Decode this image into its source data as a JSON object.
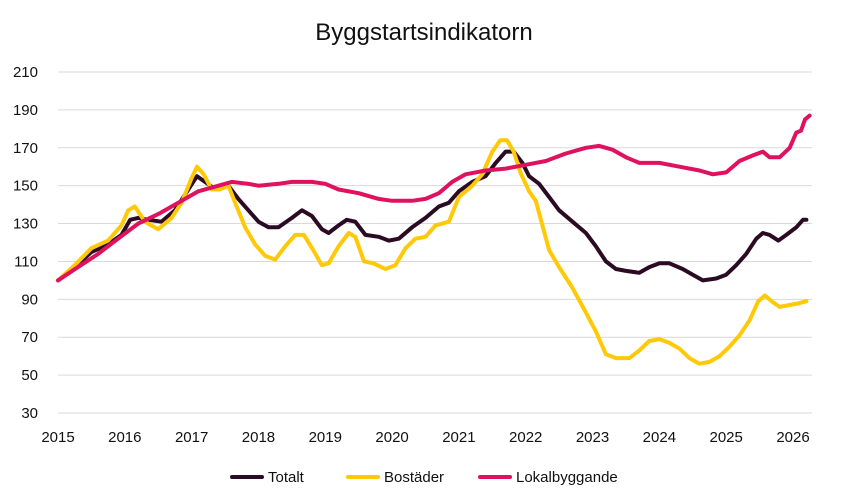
{
  "chart_data": {
    "type": "line",
    "title": "Byggstartsindikatorn",
    "xlabel": "",
    "ylabel": "",
    "xlim": [
      2015.0,
      2026.2
    ],
    "ylim": [
      30,
      210
    ],
    "y_ticks": [
      30,
      50,
      70,
      90,
      110,
      130,
      150,
      170,
      190,
      210
    ],
    "x_ticks": [
      2015,
      2016,
      2017,
      2018,
      2019,
      2020,
      2021,
      2022,
      2023,
      2024,
      2025,
      2026
    ],
    "x_tick_labels": [
      "2015",
      "2016",
      "2017",
      "2018",
      "2019",
      "2020",
      "2021",
      "2022",
      "2023",
      "2024",
      "2025",
      "2026"
    ],
    "grid": "horizontal",
    "legend": "bottom",
    "series": [
      {
        "name": "Totalt",
        "color": "#2b0b24",
        "points": [
          [
            2015.0,
            100
          ],
          [
            2015.25,
            107
          ],
          [
            2015.5,
            115
          ],
          [
            2015.75,
            119
          ],
          [
            2015.95,
            124
          ],
          [
            2016.08,
            132
          ],
          [
            2016.2,
            133
          ],
          [
            2016.35,
            132
          ],
          [
            2016.55,
            131
          ],
          [
            2016.75,
            137
          ],
          [
            2016.95,
            148
          ],
          [
            2017.08,
            155
          ],
          [
            2017.2,
            152
          ],
          [
            2017.32,
            149
          ],
          [
            2017.45,
            150
          ],
          [
            2017.55,
            150
          ],
          [
            2017.7,
            143
          ],
          [
            2017.85,
            137
          ],
          [
            2018.0,
            131
          ],
          [
            2018.15,
            128
          ],
          [
            2018.3,
            128
          ],
          [
            2018.5,
            133
          ],
          [
            2018.65,
            137
          ],
          [
            2018.8,
            134
          ],
          [
            2018.95,
            127
          ],
          [
            2019.05,
            125
          ],
          [
            2019.2,
            129
          ],
          [
            2019.32,
            132
          ],
          [
            2019.45,
            131
          ],
          [
            2019.6,
            124
          ],
          [
            2019.8,
            123
          ],
          [
            2019.95,
            121
          ],
          [
            2020.1,
            122
          ],
          [
            2020.3,
            128
          ],
          [
            2020.5,
            133
          ],
          [
            2020.7,
            139
          ],
          [
            2020.85,
            141
          ],
          [
            2021.0,
            147
          ],
          [
            2021.2,
            152
          ],
          [
            2021.4,
            155
          ],
          [
            2021.55,
            162
          ],
          [
            2021.7,
            168
          ],
          [
            2021.82,
            168
          ],
          [
            2021.95,
            162
          ],
          [
            2022.05,
            155
          ],
          [
            2022.2,
            151
          ],
          [
            2022.35,
            144
          ],
          [
            2022.5,
            137
          ],
          [
            2022.7,
            131
          ],
          [
            2022.9,
            125
          ],
          [
            2023.05,
            118
          ],
          [
            2023.2,
            110
          ],
          [
            2023.35,
            106
          ],
          [
            2023.5,
            105
          ],
          [
            2023.7,
            104
          ],
          [
            2023.85,
            107
          ],
          [
            2024.0,
            109
          ],
          [
            2024.15,
            109
          ],
          [
            2024.35,
            106
          ],
          [
            2024.5,
            103
          ],
          [
            2024.65,
            100
          ],
          [
            2024.85,
            101
          ],
          [
            2025.0,
            103
          ],
          [
            2025.15,
            108
          ],
          [
            2025.3,
            114
          ],
          [
            2025.45,
            122
          ],
          [
            2025.55,
            125
          ],
          [
            2025.65,
            124
          ],
          [
            2025.78,
            121
          ],
          [
            2025.9,
            124
          ],
          [
            2026.05,
            128
          ],
          [
            2026.15,
            132
          ],
          [
            2026.2,
            132
          ]
        ]
      },
      {
        "name": "Bostäder",
        "color": "#ffc907",
        "points": [
          [
            2015.0,
            100
          ],
          [
            2015.25,
            108
          ],
          [
            2015.5,
            117
          ],
          [
            2015.75,
            121
          ],
          [
            2015.95,
            129
          ],
          [
            2016.05,
            137
          ],
          [
            2016.15,
            139
          ],
          [
            2016.3,
            131
          ],
          [
            2016.5,
            127
          ],
          [
            2016.7,
            133
          ],
          [
            2016.85,
            141
          ],
          [
            2017.0,
            154
          ],
          [
            2017.08,
            160
          ],
          [
            2017.18,
            156
          ],
          [
            2017.3,
            148
          ],
          [
            2017.42,
            148
          ],
          [
            2017.55,
            150
          ],
          [
            2017.65,
            141
          ],
          [
            2017.8,
            128
          ],
          [
            2017.95,
            119
          ],
          [
            2018.1,
            113
          ],
          [
            2018.25,
            111
          ],
          [
            2018.4,
            118
          ],
          [
            2018.55,
            124
          ],
          [
            2018.68,
            124
          ],
          [
            2018.82,
            116
          ],
          [
            2018.95,
            108
          ],
          [
            2019.05,
            109
          ],
          [
            2019.2,
            118
          ],
          [
            2019.35,
            125
          ],
          [
            2019.45,
            123
          ],
          [
            2019.58,
            110
          ],
          [
            2019.72,
            109
          ],
          [
            2019.9,
            106
          ],
          [
            2020.05,
            108
          ],
          [
            2020.2,
            117
          ],
          [
            2020.35,
            122
          ],
          [
            2020.5,
            123
          ],
          [
            2020.65,
            129
          ],
          [
            2020.85,
            131
          ],
          [
            2021.0,
            144
          ],
          [
            2021.2,
            150
          ],
          [
            2021.35,
            156
          ],
          [
            2021.5,
            168
          ],
          [
            2021.62,
            174
          ],
          [
            2021.72,
            174
          ],
          [
            2021.82,
            168
          ],
          [
            2021.92,
            157
          ],
          [
            2022.05,
            147
          ],
          [
            2022.15,
            142
          ],
          [
            2022.25,
            129
          ],
          [
            2022.35,
            116
          ],
          [
            2022.5,
            107
          ],
          [
            2022.7,
            96
          ],
          [
            2022.9,
            83
          ],
          [
            2023.05,
            73
          ],
          [
            2023.2,
            61
          ],
          [
            2023.35,
            59
          ],
          [
            2023.55,
            59
          ],
          [
            2023.7,
            63
          ],
          [
            2023.85,
            68
          ],
          [
            2024.0,
            69
          ],
          [
            2024.15,
            67
          ],
          [
            2024.3,
            64
          ],
          [
            2024.45,
            59
          ],
          [
            2024.6,
            56
          ],
          [
            2024.75,
            57
          ],
          [
            2024.9,
            60
          ],
          [
            2025.05,
            65
          ],
          [
            2025.2,
            71
          ],
          [
            2025.35,
            79
          ],
          [
            2025.48,
            89
          ],
          [
            2025.58,
            92
          ],
          [
            2025.68,
            89
          ],
          [
            2025.8,
            86
          ],
          [
            2025.95,
            87
          ],
          [
            2026.1,
            88
          ],
          [
            2026.2,
            89
          ]
        ]
      },
      {
        "name": "Lokalbyggande",
        "color": "#e0115f",
        "points": [
          [
            2015.0,
            100
          ],
          [
            2015.3,
            107
          ],
          [
            2015.6,
            114
          ],
          [
            2015.9,
            122
          ],
          [
            2016.2,
            130
          ],
          [
            2016.5,
            135
          ],
          [
            2016.8,
            141
          ],
          [
            2017.1,
            147
          ],
          [
            2017.4,
            150
          ],
          [
            2017.6,
            152
          ],
          [
            2017.85,
            151
          ],
          [
            2018.0,
            150
          ],
          [
            2018.3,
            151
          ],
          [
            2018.5,
            152
          ],
          [
            2018.8,
            152
          ],
          [
            2019.0,
            151
          ],
          [
            2019.2,
            148
          ],
          [
            2019.5,
            146
          ],
          [
            2019.8,
            143
          ],
          [
            2020.0,
            142
          ],
          [
            2020.3,
            142
          ],
          [
            2020.5,
            143
          ],
          [
            2020.7,
            146
          ],
          [
            2020.9,
            152
          ],
          [
            2021.1,
            156
          ],
          [
            2021.4,
            158
          ],
          [
            2021.7,
            159
          ],
          [
            2022.0,
            161
          ],
          [
            2022.3,
            163
          ],
          [
            2022.6,
            167
          ],
          [
            2022.9,
            170
          ],
          [
            2023.1,
            171
          ],
          [
            2023.3,
            169
          ],
          [
            2023.5,
            165
          ],
          [
            2023.7,
            162
          ],
          [
            2024.0,
            162
          ],
          [
            2024.3,
            160
          ],
          [
            2024.6,
            158
          ],
          [
            2024.8,
            156
          ],
          [
            2025.0,
            157
          ],
          [
            2025.2,
            163
          ],
          [
            2025.4,
            166
          ],
          [
            2025.55,
            168
          ],
          [
            2025.65,
            165
          ],
          [
            2025.8,
            165
          ],
          [
            2025.95,
            170
          ],
          [
            2026.05,
            178
          ],
          [
            2026.12,
            179
          ],
          [
            2026.18,
            185
          ],
          [
            2026.25,
            187
          ]
        ]
      }
    ]
  }
}
